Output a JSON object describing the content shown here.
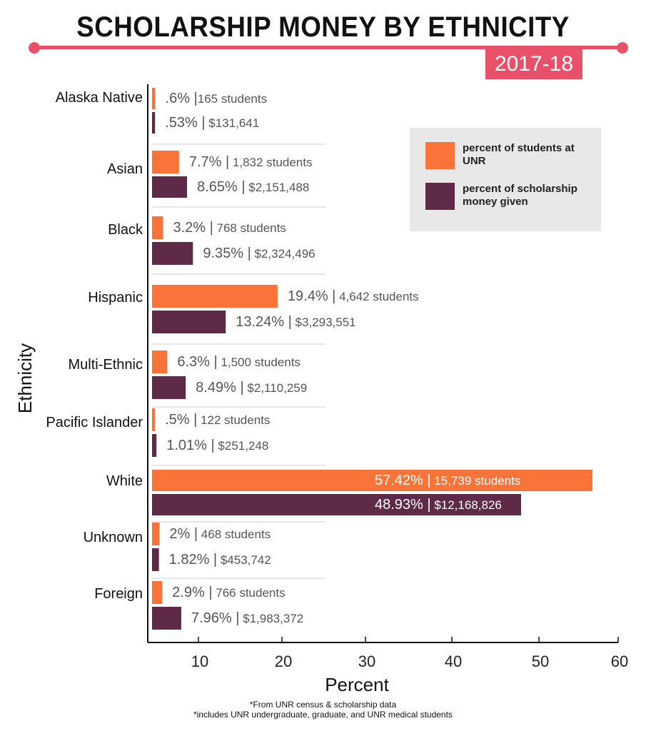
{
  "title": "SCHOLARSHIP MONEY BY ETHNICITY",
  "year": "2017-18",
  "colors": {
    "accent": "#e9516b",
    "students": "#fa7338",
    "money": "#5e2a47",
    "legend_bg": "#e8e8e8"
  },
  "legend": {
    "students": "percent of students at UNR",
    "money": "percent of scholarship money given"
  },
  "notes": [
    "*From UNR census & scholarship data",
    "*includes UNR undergraduate, graduate, and UNR medical students"
  ],
  "chart_data": {
    "type": "bar",
    "orientation": "horizontal",
    "title": "SCHOLARSHIP MONEY BY ETHNICITY",
    "subtitle": "2017-18",
    "xlabel": "Percent",
    "ylabel": "Ethnicity",
    "xticks": [
      10,
      20,
      30,
      40,
      50,
      60
    ],
    "xlim": [
      4,
      60
    ],
    "grid": false,
    "legend_position": "top-right",
    "categories": [
      "Alaska Native",
      "Asian",
      "Black",
      "Hispanic",
      "Multi-Ethnic",
      "Pacific Islander",
      "White",
      "Unknown",
      "Foreign"
    ],
    "series": [
      {
        "name": "percent of students at UNR",
        "values": [
          0.6,
          7.7,
          3.2,
          19.4,
          6.3,
          0.5,
          57.42,
          2,
          2.9
        ],
        "labels": [
          ".6% |165 students",
          "7.7% | 1,832 students",
          "3.2% | 768 students",
          "19.4% | 4,642 students",
          "6.3% | 1,500 students",
          ".5% | 122 students",
          "57.42% | 15,739 students",
          "2% | 468 students",
          "2.9% | 766 students"
        ]
      },
      {
        "name": "percent of scholarship money given",
        "values": [
          0.53,
          8.65,
          9.35,
          13.24,
          8.49,
          1.01,
          48.93,
          1.82,
          7.96
        ],
        "labels": [
          ".53% | $131,641",
          "8.65% | $2,151,488",
          "9.35% | $2,324,496",
          "13.24% | $3,293,551",
          "8.49% | $2,110,259",
          "1.01% | $251,248",
          "48.93% | $12,168,826",
          "1.82% | $453,742",
          "7.96% | $1,983,372"
        ]
      }
    ]
  }
}
